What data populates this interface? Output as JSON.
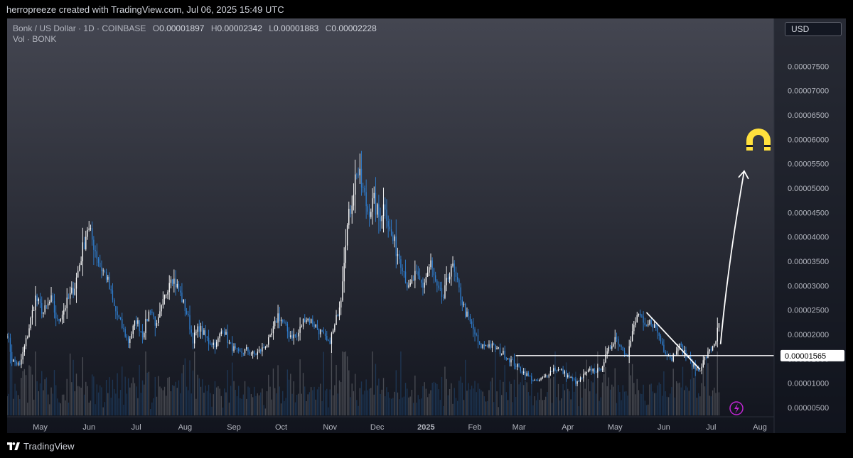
{
  "header": {
    "caption": "herropreeze created with TradingView.com, Jul 06, 2025 15:49 UTC"
  },
  "legend": {
    "symbol": "Bonk / US Dollar · 1D · COINBASE",
    "open_key": "O",
    "open": "0.00001897",
    "high_key": "H",
    "high": "0.00002342",
    "low_key": "L",
    "low": "0.00001883",
    "close_key": "C",
    "close": "0.00002228",
    "volume_label": "Vol · BONK"
  },
  "currency_label": "USD",
  "footer": {
    "brand": "TradingView"
  },
  "colors": {
    "up": "#ffffff",
    "down": "#2f7fd1",
    "background_top": "#444651",
    "background_bottom": "#11141d",
    "level_label_bg": "#ffffff",
    "magnet": "#ffe03d",
    "lightning": "#c026d3"
  },
  "chart_data": {
    "type": "candlestick",
    "y_axis": {
      "min": 3.1e-06,
      "max": 8.48e-05,
      "ticks": [
        {
          "value": 5e-06,
          "label": "0.00000500"
        },
        {
          "value": 1e-05,
          "label": "0.00001000"
        },
        {
          "value": 1.5e-05,
          "label": "0.00001500"
        },
        {
          "value": 2e-05,
          "label": "0.00002000"
        },
        {
          "value": 2.5e-05,
          "label": "0.00002500"
        },
        {
          "value": 3e-05,
          "label": "0.00003000"
        },
        {
          "value": 3.5e-05,
          "label": "0.00003500"
        },
        {
          "value": 4e-05,
          "label": "0.00004000"
        },
        {
          "value": 4.5e-05,
          "label": "0.00004500"
        },
        {
          "value": 5e-05,
          "label": "0.00005000"
        },
        {
          "value": 5.5e-05,
          "label": "0.00005500"
        },
        {
          "value": 6e-05,
          "label": "0.00006000"
        },
        {
          "value": 6.5e-05,
          "label": "0.00006500"
        },
        {
          "value": 7e-05,
          "label": "0.00007000"
        },
        {
          "value": 7.5e-05,
          "label": "0.00007500"
        }
      ]
    },
    "x_axis": {
      "min": "2024-04-10",
      "max": "2025-08-10",
      "ticks": [
        {
          "date": "2024-05-01",
          "label": "May"
        },
        {
          "date": "2024-06-01",
          "label": "Jun"
        },
        {
          "date": "2024-07-01",
          "label": "Jul"
        },
        {
          "date": "2024-08-01",
          "label": "Aug"
        },
        {
          "date": "2024-09-01",
          "label": "Sep"
        },
        {
          "date": "2024-10-01",
          "label": "Oct"
        },
        {
          "date": "2024-11-01",
          "label": "Nov"
        },
        {
          "date": "2024-12-01",
          "label": "Dec"
        },
        {
          "date": "2025-01-01",
          "label": "2025",
          "bold": true
        },
        {
          "date": "2025-02-01",
          "label": "Feb"
        },
        {
          "date": "2025-03-01",
          "label": "Mar"
        },
        {
          "date": "2025-04-01",
          "label": "Apr"
        },
        {
          "date": "2025-05-01",
          "label": "May"
        },
        {
          "date": "2025-06-01",
          "label": "Jun"
        },
        {
          "date": "2025-07-01",
          "label": "Jul"
        },
        {
          "date": "2025-08-01",
          "label": "Aug"
        }
      ]
    },
    "price_path": [
      [
        "2024-04-10",
        2.05e-05
      ],
      [
        "2024-04-13",
        1.48e-05
      ],
      [
        "2024-04-18",
        1.35e-05
      ],
      [
        "2024-04-23",
        2e-05
      ],
      [
        "2024-04-28",
        2.75e-05
      ],
      [
        "2024-05-03",
        2.45e-05
      ],
      [
        "2024-05-08",
        2.7e-05
      ],
      [
        "2024-05-12",
        2.25e-05
      ],
      [
        "2024-05-18",
        2.65e-05
      ],
      [
        "2024-05-23",
        3e-05
      ],
      [
        "2024-05-27",
        3.6e-05
      ],
      [
        "2024-05-31",
        4.2e-05
      ],
      [
        "2024-06-04",
        3.85e-05
      ],
      [
        "2024-06-08",
        3.4e-05
      ],
      [
        "2024-06-12",
        3.2e-05
      ],
      [
        "2024-06-17",
        2.55e-05
      ],
      [
        "2024-06-22",
        2.15e-05
      ],
      [
        "2024-06-26",
        1.85e-05
      ],
      [
        "2024-07-01",
        2.3e-05
      ],
      [
        "2024-07-05",
        2e-05
      ],
      [
        "2024-07-10",
        2.55e-05
      ],
      [
        "2024-07-14",
        2.15e-05
      ],
      [
        "2024-07-19",
        2.75e-05
      ],
      [
        "2024-07-23",
        3.25e-05
      ],
      [
        "2024-07-28",
        2.9e-05
      ],
      [
        "2024-08-02",
        2.45e-05
      ],
      [
        "2024-08-06",
        1.9e-05
      ],
      [
        "2024-08-10",
        2.15e-05
      ],
      [
        "2024-08-16",
        1.85e-05
      ],
      [
        "2024-08-21",
        1.8e-05
      ],
      [
        "2024-08-25",
        2.15e-05
      ],
      [
        "2024-08-29",
        1.8e-05
      ],
      [
        "2024-09-04",
        1.6e-05
      ],
      [
        "2024-09-09",
        1.68e-05
      ],
      [
        "2024-09-14",
        1.58e-05
      ],
      [
        "2024-09-19",
        1.7e-05
      ],
      [
        "2024-09-24",
        1.9e-05
      ],
      [
        "2024-09-29",
        2.4e-05
      ],
      [
        "2024-10-03",
        2.2e-05
      ],
      [
        "2024-10-06",
        2e-05
      ],
      [
        "2024-10-11",
        1.95e-05
      ],
      [
        "2024-10-16",
        2.35e-05
      ],
      [
        "2024-10-21",
        2.25e-05
      ],
      [
        "2024-10-27",
        2e-05
      ],
      [
        "2024-10-31",
        1.8e-05
      ],
      [
        "2024-11-04",
        2.15e-05
      ],
      [
        "2024-11-08",
        2.8e-05
      ],
      [
        "2024-11-11",
        4e-05
      ],
      [
        "2024-11-14",
        4.6e-05
      ],
      [
        "2024-11-18",
        5.4e-05
      ],
      [
        "2024-11-21",
        5.05e-05
      ],
      [
        "2024-11-25",
        4.55e-05
      ],
      [
        "2024-11-29",
        4.7e-05
      ],
      [
        "2024-12-02",
        4.4e-05
      ],
      [
        "2024-12-06",
        4.7e-05
      ],
      [
        "2024-12-09",
        4.1e-05
      ],
      [
        "2024-12-13",
        3.75e-05
      ],
      [
        "2024-12-17",
        3.45e-05
      ],
      [
        "2024-12-21",
        2.9e-05
      ],
      [
        "2024-12-25",
        3.2e-05
      ],
      [
        "2024-12-30",
        3e-05
      ],
      [
        "2025-01-04",
        3.45e-05
      ],
      [
        "2025-01-08",
        2.9e-05
      ],
      [
        "2025-01-12",
        2.75e-05
      ],
      [
        "2025-01-17",
        3.45e-05
      ],
      [
        "2025-01-21",
        3e-05
      ],
      [
        "2025-01-26",
        2.45e-05
      ],
      [
        "2025-01-31",
        2.1e-05
      ],
      [
        "2025-02-04",
        1.75e-05
      ],
      [
        "2025-02-09",
        1.8e-05
      ],
      [
        "2025-02-14",
        1.72e-05
      ],
      [
        "2025-02-20",
        1.58e-05
      ],
      [
        "2025-02-26",
        1.4e-05
      ],
      [
        "2025-03-03",
        1.25e-05
      ],
      [
        "2025-03-08",
        1.12e-05
      ],
      [
        "2025-03-12",
        1.02e-05
      ],
      [
        "2025-03-17",
        1.12e-05
      ],
      [
        "2025-03-23",
        1.3e-05
      ],
      [
        "2025-03-28",
        1.25e-05
      ],
      [
        "2025-04-02",
        1.12e-05
      ],
      [
        "2025-04-07",
        1e-05
      ],
      [
        "2025-04-11",
        1.15e-05
      ],
      [
        "2025-04-16",
        1.28e-05
      ],
      [
        "2025-04-21",
        1.25e-05
      ],
      [
        "2025-04-26",
        1.6e-05
      ],
      [
        "2025-05-01",
        1.95e-05
      ],
      [
        "2025-05-05",
        1.75e-05
      ],
      [
        "2025-05-09",
        1.6e-05
      ],
      [
        "2025-05-13",
        2.15e-05
      ],
      [
        "2025-05-16",
        2.45e-05
      ],
      [
        "2025-05-20",
        2.1e-05
      ],
      [
        "2025-05-24",
        2.28e-05
      ],
      [
        "2025-05-28",
        2.05e-05
      ],
      [
        "2025-06-01",
        1.7e-05
      ],
      [
        "2025-06-06",
        1.5e-05
      ],
      [
        "2025-06-10",
        1.8e-05
      ],
      [
        "2025-06-15",
        1.6e-05
      ],
      [
        "2025-06-20",
        1.35e-05
      ],
      [
        "2025-06-23",
        1.25e-05
      ],
      [
        "2025-06-27",
        1.5e-05
      ],
      [
        "2025-07-01",
        1.7e-05
      ],
      [
        "2025-07-04",
        1.9e-05
      ],
      [
        "2025-07-06",
        2.23e-05
      ]
    ],
    "volume_scale_max": 5200000000000.0,
    "level": {
      "value": 1.565e-05,
      "label": "0.00001565",
      "from": "2025-02-27"
    },
    "trendline": {
      "from": [
        "2025-05-21",
        2.45e-05
      ],
      "to": [
        "2025-06-24",
        1.28e-05
      ]
    },
    "projection_arrow": {
      "from": [
        "2025-07-07",
        1.8e-05
      ],
      "to": [
        "2025-07-22",
        5.35e-05
      ]
    }
  }
}
